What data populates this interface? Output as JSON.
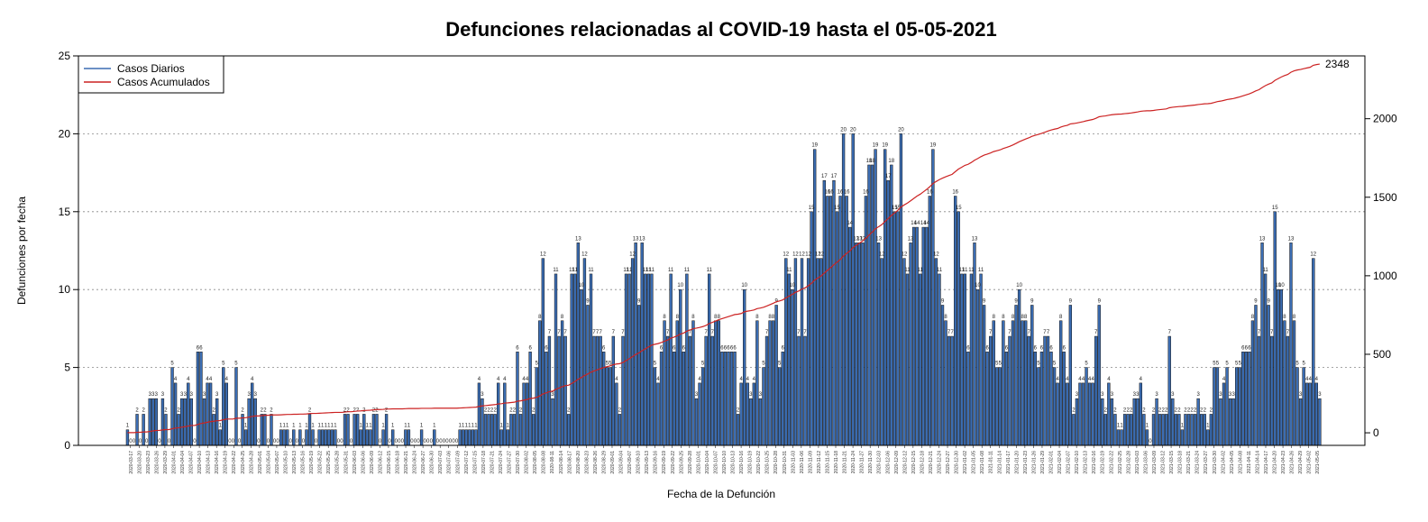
{
  "chart_data": {
    "type": "bar",
    "title": "Defunciones relacionadas al COVID-19 hasta el 05-05-2021",
    "xlabel": "Fecha de la Defunción",
    "ylabel": "Defunciones por fecha",
    "ylim": [
      0,
      25
    ],
    "y_ticks": [
      0,
      5,
      10,
      15,
      20,
      25
    ],
    "y2lim": [
      -80,
      2400
    ],
    "y2_ticks": [
      0,
      500,
      1000,
      1500,
      2000
    ],
    "grid": "horizontal dotted",
    "legend": {
      "position": "top-left",
      "entries": [
        {
          "label": "Casos Diarios",
          "color": "#3b6db3"
        },
        {
          "label": "Casos Acumulados",
          "color": "#cc2222"
        }
      ]
    },
    "series": [
      {
        "name": "Casos Diarios",
        "color": "#3b6db3"
      },
      {
        "name": "Casos Acumulados",
        "color": "#cc2222",
        "final_value": 2348,
        "final_label": "2348"
      }
    ],
    "x_labels": [
      "2020-03-17",
      "2020-03-20",
      "2020-03-23",
      "2020-03-26",
      "2020-03-29",
      "2020-04-01",
      "2020-04-04",
      "2020-04-07",
      "2020-04-10",
      "2020-04-13",
      "2020-04-16",
      "2020-04-19",
      "2020-04-22",
      "2020-04-25",
      "2020-04-28",
      "2020-05-01",
      "2020-05-04",
      "2020-05-07",
      "2020-05-10",
      "2020-05-13",
      "2020-05-16",
      "2020-05-19",
      "2020-05-22",
      "2020-05-25",
      "2020-05-28",
      "2020-05-31",
      "2020-06-03",
      "2020-06-06",
      "2020-06-09",
      "2020-06-12",
      "2020-06-15",
      "2020-06-18",
      "2020-06-21",
      "2020-06-24",
      "2020-06-27",
      "2020-06-30",
      "2020-07-03",
      "2020-07-06",
      "2020-07-09",
      "2020-07-12",
      "2020-07-15",
      "2020-07-18",
      "2020-07-21",
      "2020-07-24",
      "2020-07-27",
      "2020-07-30",
      "2020-08-02",
      "2020-08-05",
      "2020-08-08",
      "2020-08-11",
      "2020-08-14",
      "2020-08-17",
      "2020-08-20",
      "2020-08-23",
      "2020-08-26",
      "2020-08-29",
      "2020-09-01",
      "2020-09-04",
      "2020-09-07",
      "2020-09-10",
      "2020-09-13",
      "2020-09-16",
      "2020-09-19",
      "2020-09-22",
      "2020-09-25",
      "2020-09-28",
      "2020-10-01",
      "2020-10-04",
      "2020-10-07",
      "2020-10-10",
      "2020-10-13",
      "2020-10-16",
      "2020-10-19",
      "2020-10-22",
      "2020-10-25",
      "2020-10-28",
      "2020-10-31",
      "2020-11-03",
      "2020-11-06",
      "2020-11-09",
      "2020-11-12",
      "2020-11-15",
      "2020-11-18",
      "2020-11-21",
      "2020-11-24",
      "2020-11-27",
      "2020-11-30",
      "2020-12-03",
      "2020-12-06",
      "2020-12-09",
      "2020-12-12",
      "2020-12-15",
      "2020-12-18",
      "2020-12-21",
      "2020-12-24",
      "2020-12-27",
      "2020-12-30",
      "2021-01-02",
      "2021-01-05",
      "2021-01-08",
      "2021-01-11",
      "2021-01-14",
      "2021-01-17",
      "2021-01-20",
      "2021-01-23",
      "2021-01-26",
      "2021-01-29",
      "2021-02-01",
      "2021-02-04",
      "2021-02-07",
      "2021-02-10",
      "2021-02-13",
      "2021-02-16",
      "2021-02-19",
      "2021-02-22",
      "2021-02-25",
      "2021-02-28",
      "2021-03-03",
      "2021-03-06",
      "2021-03-09",
      "2021-03-12",
      "2021-03-15",
      "2021-03-18",
      "2021-03-21",
      "2021-03-24",
      "2021-03-27",
      "2021-03-30",
      "2021-04-02",
      "2021-04-05",
      "2021-04-08",
      "2021-04-11",
      "2021-04-14",
      "2021-04-17",
      "2021-04-20",
      "2021-04-23",
      "2021-04-26",
      "2021-04-29",
      "2021-05-02",
      "2021-05-05"
    ],
    "values": [
      1,
      0,
      0,
      2,
      0,
      2,
      0,
      3,
      3,
      3,
      0,
      3,
      2,
      0,
      5,
      4,
      2,
      3,
      3,
      4,
      3,
      0,
      6,
      6,
      3,
      4,
      4,
      2,
      3,
      1,
      5,
      4,
      0,
      0,
      5,
      0,
      2,
      1,
      3,
      4,
      3,
      0,
      2,
      2,
      0,
      2,
      0,
      0,
      1,
      1,
      1,
      0,
      1,
      0,
      1,
      0,
      1,
      2,
      1,
      0,
      1,
      1,
      1,
      1,
      1,
      1,
      0,
      0,
      2,
      2,
      0,
      2,
      2,
      1,
      2,
      1,
      1,
      2,
      2,
      0,
      1,
      2,
      0,
      1,
      0,
      0,
      0,
      1,
      1,
      0,
      0,
      0,
      1,
      0,
      0,
      0,
      1,
      0,
      0,
      0,
      0,
      0,
      0,
      0,
      1,
      1,
      1,
      1,
      1,
      1,
      4,
      3,
      2,
      2,
      2,
      2,
      4,
      1,
      4,
      1,
      2,
      2,
      6,
      2,
      4,
      4,
      6,
      2,
      5,
      8,
      12,
      6,
      7,
      3,
      11,
      7,
      8,
      7,
      2,
      11,
      11,
      13,
      10,
      12,
      9,
      11,
      7,
      7,
      7,
      6,
      5,
      5,
      7,
      4,
      2,
      7,
      11,
      11,
      12,
      13,
      9,
      13,
      11,
      11,
      11,
      5,
      4,
      6,
      8,
      7,
      11,
      6,
      8,
      10,
      6,
      11,
      7,
      8,
      3,
      4,
      5,
      7,
      11,
      7,
      8,
      8,
      6,
      6,
      6,
      6,
      6,
      2,
      4,
      10,
      4,
      3,
      4,
      8,
      3,
      5,
      7,
      8,
      8,
      9,
      5,
      6,
      12,
      11,
      10,
      12,
      7,
      12,
      7,
      12,
      15,
      19,
      12,
      12,
      17,
      16,
      16,
      17,
      15,
      16,
      20,
      16,
      14,
      20,
      13,
      13,
      13,
      16,
      18,
      18,
      19,
      13,
      12,
      19,
      17,
      18,
      15,
      15,
      20,
      12,
      11,
      13,
      14,
      14,
      11,
      14,
      14,
      16,
      19,
      12,
      11,
      9,
      8,
      7,
      7,
      16,
      15,
      11,
      11,
      6,
      11,
      13,
      10,
      11,
      9,
      6,
      7,
      8,
      5,
      5,
      8,
      6,
      7,
      8,
      9,
      10,
      8,
      8,
      7,
      9,
      6,
      5,
      6,
      7,
      7,
      6,
      5,
      4,
      8,
      6,
      4,
      9,
      2,
      3,
      4,
      4,
      5,
      4,
      4,
      7,
      9,
      3,
      2,
      4,
      3,
      2,
      1,
      1,
      2,
      2,
      2,
      3,
      3,
      4,
      2,
      1,
      0,
      2,
      3,
      2,
      2,
      2,
      7,
      3,
      2,
      2,
      1,
      2,
      2,
      2,
      2,
      3,
      2,
      2,
      1,
      2,
      5,
      5,
      3,
      4,
      5,
      3,
      3,
      5,
      5,
      6,
      6,
      6,
      8,
      9,
      7,
      13,
      11,
      9,
      7,
      15,
      10,
      10,
      8,
      7,
      13,
      8,
      5,
      3,
      5,
      4,
      4,
      12,
      4,
      3
    ]
  }
}
